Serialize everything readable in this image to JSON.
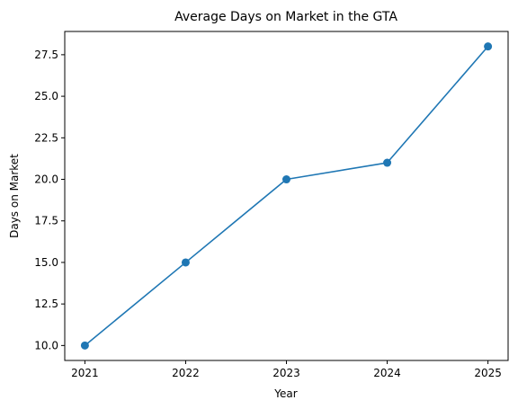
{
  "chart_data": {
    "type": "line",
    "title": "Average Days on Market in the GTA",
    "xlabel": "Year",
    "ylabel": "Days on Market",
    "x": [
      "2021",
      "2022",
      "2023",
      "2024",
      "2025"
    ],
    "series": [
      {
        "values": [
          10,
          15,
          20,
          21,
          28
        ],
        "color": "#1f77b4",
        "marker": "circle"
      }
    ],
    "ylim": [
      9.1,
      28.9
    ],
    "y_ticks": [
      "10.0",
      "12.5",
      "15.0",
      "17.5",
      "20.0",
      "22.5",
      "25.0",
      "27.5"
    ],
    "grid": false,
    "legend": "none"
  }
}
